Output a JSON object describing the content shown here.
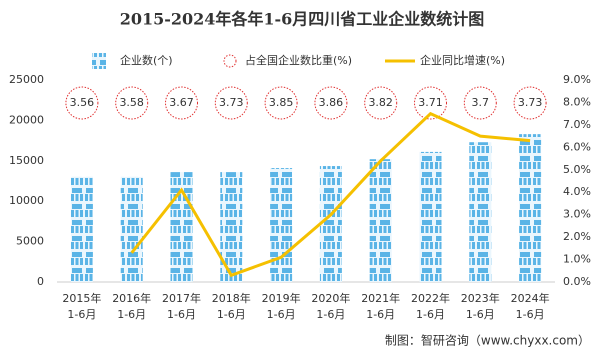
{
  "chart_data": {
    "type": "bar_line",
    "title": "2015-2024年各年1-6月四川省工业企业数统计图",
    "categories": [
      "2015年\n1-6月",
      "2016年\n1-6月",
      "2017年\n1-6月",
      "2018年\n1-6月",
      "2019年\n1-6月",
      "2020年\n1-6月",
      "2021年\n1-6月",
      "2022年\n1-6月",
      "2023年\n1-6月",
      "2024年\n1-6月"
    ],
    "series": [
      {
        "name": "企业数(个)",
        "color": "#5ab4e6",
        "values": [
          13000,
          13000,
          13600,
          13600,
          14100,
          14350,
          15200,
          16100,
          17300,
          18300
        ]
      },
      {
        "name": "占全国企业数比重(%)",
        "color": "#e03030",
        "values": [
          3.56,
          3.58,
          3.67,
          3.73,
          3.85,
          3.86,
          3.82,
          3.71,
          3.7,
          3.73
        ]
      },
      {
        "name": "企业同比增速(%)",
        "color": "#f5c000",
        "axis": "y2",
        "values": [
          null,
          1.3,
          4.1,
          0.3,
          1.1,
          3.0,
          5.4,
          7.5,
          6.5,
          6.3
        ]
      }
    ],
    "ylim": [
      0,
      25000
    ],
    "yticks": [
      0,
      5000,
      10000,
      15000,
      20000,
      25000
    ],
    "y2lim": [
      0,
      9
    ],
    "y2ticks": [
      {
        "value": 0,
        "label": "0.0%"
      },
      {
        "value": 1,
        "label": "1.0%"
      },
      {
        "value": 2,
        "label": "2.0%"
      },
      {
        "value": 3,
        "label": "3.0%"
      },
      {
        "value": 4,
        "label": "4.0%"
      },
      {
        "value": 5,
        "label": "5.0%"
      },
      {
        "value": 6,
        "label": "6.0%"
      },
      {
        "value": 7,
        "label": "7.0%"
      },
      {
        "value": 8,
        "label": "8.0%"
      },
      {
        "value": 9,
        "label": "9.0%"
      }
    ],
    "source": "制图：智研咨询（www.chyxx.com）"
  }
}
